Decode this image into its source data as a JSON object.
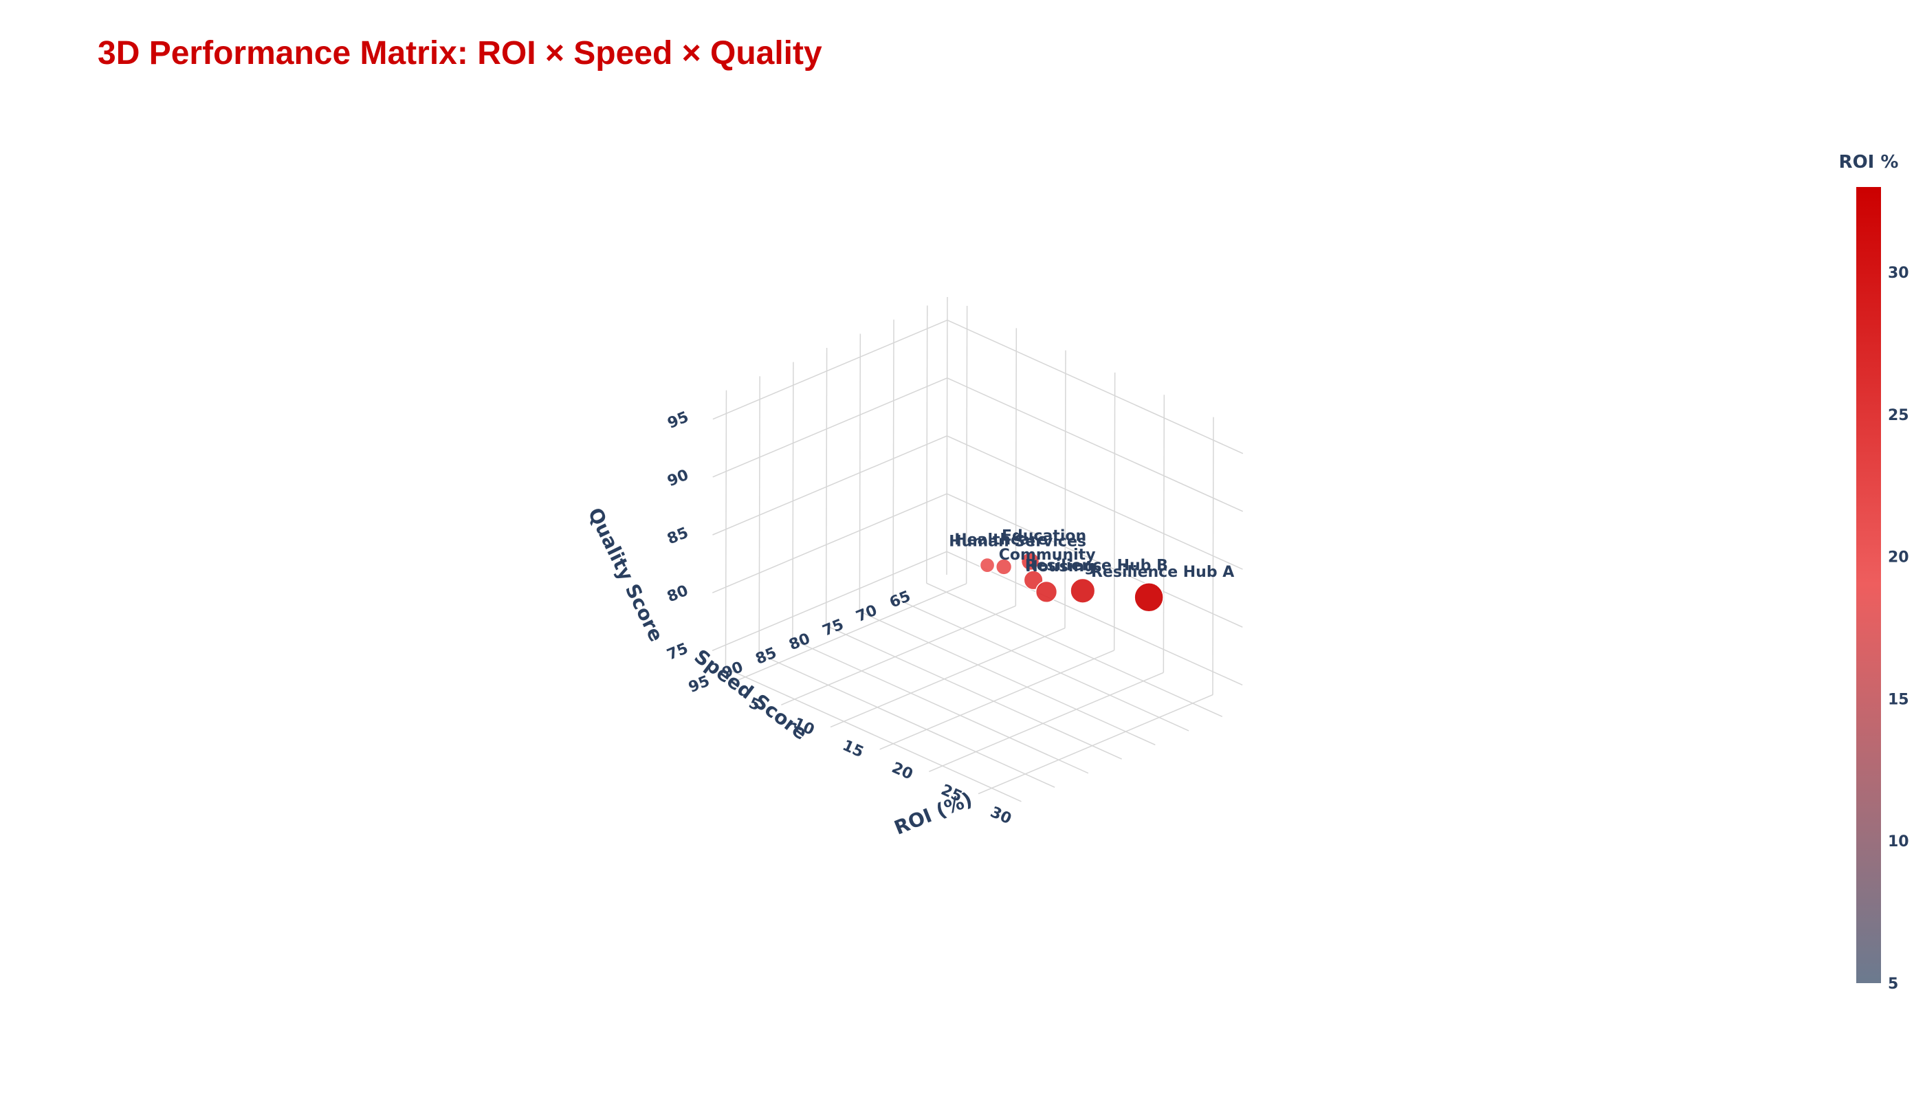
{
  "chart_data": {
    "type": "scatter3d",
    "title": "3D Performance Matrix: ROI × Speed × Quality",
    "axes": {
      "x": {
        "title": "ROI (%)",
        "ticks": [
          5,
          10,
          15,
          20,
          25,
          30
        ],
        "range": [
          3,
          33
        ]
      },
      "y": {
        "title": "Speed Score",
        "ticks": [
          65,
          70,
          75,
          80,
          85,
          90,
          95
        ],
        "range": [
          62,
          97
        ]
      },
      "z": {
        "title": "Quality Score",
        "ticks": [
          75,
          80,
          85,
          90,
          95
        ],
        "range": [
          73,
          97
        ]
      }
    },
    "colorbar": {
      "title": "ROI %",
      "ticks": [
        5,
        10,
        15,
        20,
        25,
        30
      ],
      "range": [
        5,
        33
      ],
      "colors": [
        "#6b7a8f",
        "#ee5e5e",
        "#cc0000"
      ]
    },
    "points": [
      {
        "name": "Healthcare",
        "roi": 20,
        "speed": 81,
        "quality": 85
      },
      {
        "name": "Human Services",
        "roi": 21,
        "speed": 80,
        "quality": 85
      },
      {
        "name": "Education",
        "roi": 23,
        "speed": 79,
        "quality": 86
      },
      {
        "name": "Community",
        "roi": 24,
        "speed": 80,
        "quality": 85
      },
      {
        "name": "Housing",
        "roi": 26,
        "speed": 81,
        "quality": 85
      },
      {
        "name": "Resilience Hub B",
        "roi": 29,
        "speed": 80,
        "quality": 86
      },
      {
        "name": "Resilience Hub A",
        "roi": 33,
        "speed": 76,
        "quality": 86
      }
    ]
  }
}
